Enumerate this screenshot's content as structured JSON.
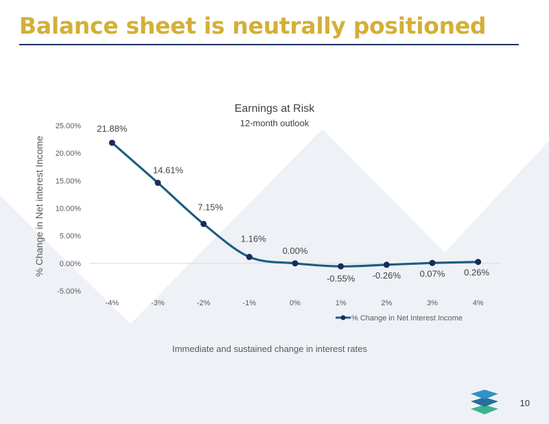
{
  "slide": {
    "title": "Balance sheet is neutrally positioned",
    "page_number": "10"
  },
  "colors": {
    "title": "#d4af37",
    "rule": "#1b2f57",
    "line": "#1c5d80",
    "marker": "#1b2a5a",
    "background_shape": "#edf1f7",
    "logo_top": "#2e93c5",
    "logo_mid": "#256f9a",
    "logo_bottom": "#3cb38a"
  },
  "chart_data": {
    "type": "line",
    "title": "Earnings at Risk",
    "subtitle": "12-month outlook",
    "ylabel": "% Change in Net interest Income",
    "xlabel": "Immediate and sustained change in interest rates",
    "categories": [
      "-4%",
      "-3%",
      "-2%",
      "-1%",
      "0%",
      "1%",
      "2%",
      "3%",
      "4%"
    ],
    "series": [
      {
        "name": "% Change in Net Interest Income",
        "values": [
          21.88,
          14.61,
          7.15,
          1.16,
          0.0,
          -0.55,
          -0.26,
          0.07,
          0.26
        ],
        "data_labels": [
          "21.88%",
          "14.61%",
          "7.15%",
          "1.16%",
          "0.00%",
          "-0.55%",
          "-0.26%",
          "0.07%",
          "0.26%"
        ]
      }
    ],
    "ylim": [
      -5,
      25
    ],
    "yticks": [
      -5,
      0,
      5,
      10,
      15,
      20,
      25
    ],
    "ytick_labels": [
      "-5.00%",
      "0.00%",
      "5.00%",
      "10.00%",
      "15.00%",
      "20.00%",
      "25.00%"
    ],
    "legend_position": "bottom-right",
    "grid": false,
    "zero_line": true,
    "smooth": true
  }
}
